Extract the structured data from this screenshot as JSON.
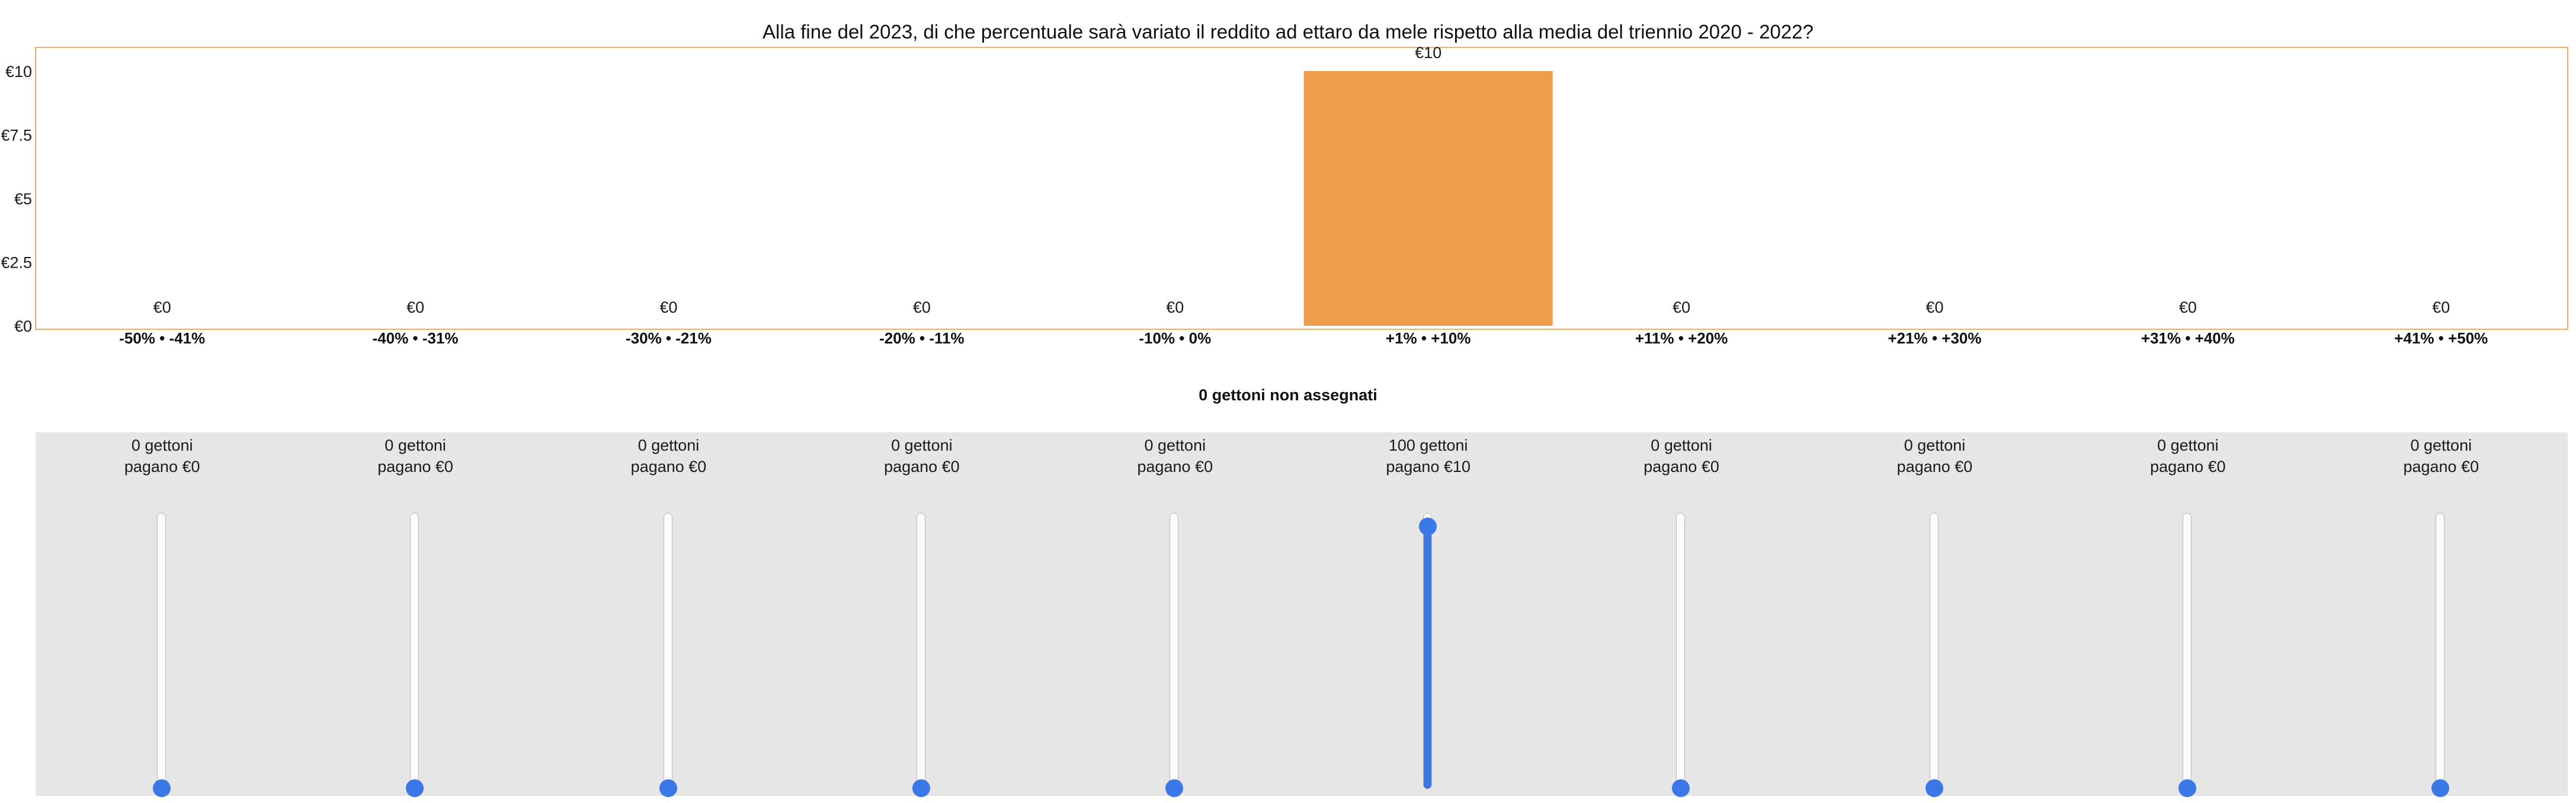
{
  "title": "Alla fine del 2023, di che percentuale sarà variato il reddito ad ettaro da mele rispetto alla media del triennio 2020 - 2022?",
  "unassigned_label": "0 gettoni non assegnati",
  "colors": {
    "bar": "#ef9d4a",
    "frame": "#f0b060",
    "slider_accent": "#3b78e7",
    "panel": "#e6e6e6"
  },
  "chart_data": {
    "type": "bar",
    "title": "Alla fine del 2023, di che percentuale sarà variato il reddito ad ettaro da mele rispetto alla media del triennio 2020 - 2022?",
    "categories": [
      "-50% • -41%",
      "-40% • -31%",
      "-30% • -21%",
      "-20% • -11%",
      "-10% • 0%",
      "+1% • +10%",
      "+11% • +20%",
      "+21% • +30%",
      "+31% • +40%",
      "+41% • +50%"
    ],
    "values": [
      0,
      0,
      0,
      0,
      0,
      10,
      0,
      0,
      0,
      0
    ],
    "value_labels": [
      "€0",
      "€0",
      "€0",
      "€0",
      "€0",
      "€10",
      "€0",
      "€0",
      "€0",
      "€0"
    ],
    "y_ticks": [
      0,
      2.5,
      5,
      7.5,
      10
    ],
    "y_tick_labels": [
      "€0",
      "€2.5",
      "€5",
      "€7.5",
      "€10"
    ],
    "ylim": [
      0,
      11
    ],
    "grid": false,
    "legend": "none"
  },
  "sliders": [
    {
      "tokens_text": "0 gettoni",
      "pays_text": "pagano €0",
      "tokens": 0
    },
    {
      "tokens_text": "0 gettoni",
      "pays_text": "pagano €0",
      "tokens": 0
    },
    {
      "tokens_text": "0 gettoni",
      "pays_text": "pagano €0",
      "tokens": 0
    },
    {
      "tokens_text": "0 gettoni",
      "pays_text": "pagano €0",
      "tokens": 0
    },
    {
      "tokens_text": "0 gettoni",
      "pays_text": "pagano €0",
      "tokens": 0
    },
    {
      "tokens_text": "100 gettoni",
      "pays_text": "pagano €10",
      "tokens": 100
    },
    {
      "tokens_text": "0 gettoni",
      "pays_text": "pagano €0",
      "tokens": 0
    },
    {
      "tokens_text": "0 gettoni",
      "pays_text": "pagano €0",
      "tokens": 0
    },
    {
      "tokens_text": "0 gettoni",
      "pays_text": "pagano €0",
      "tokens": 0
    },
    {
      "tokens_text": "0 gettoni",
      "pays_text": "pagano €0",
      "tokens": 0
    }
  ],
  "slider_max": 100
}
